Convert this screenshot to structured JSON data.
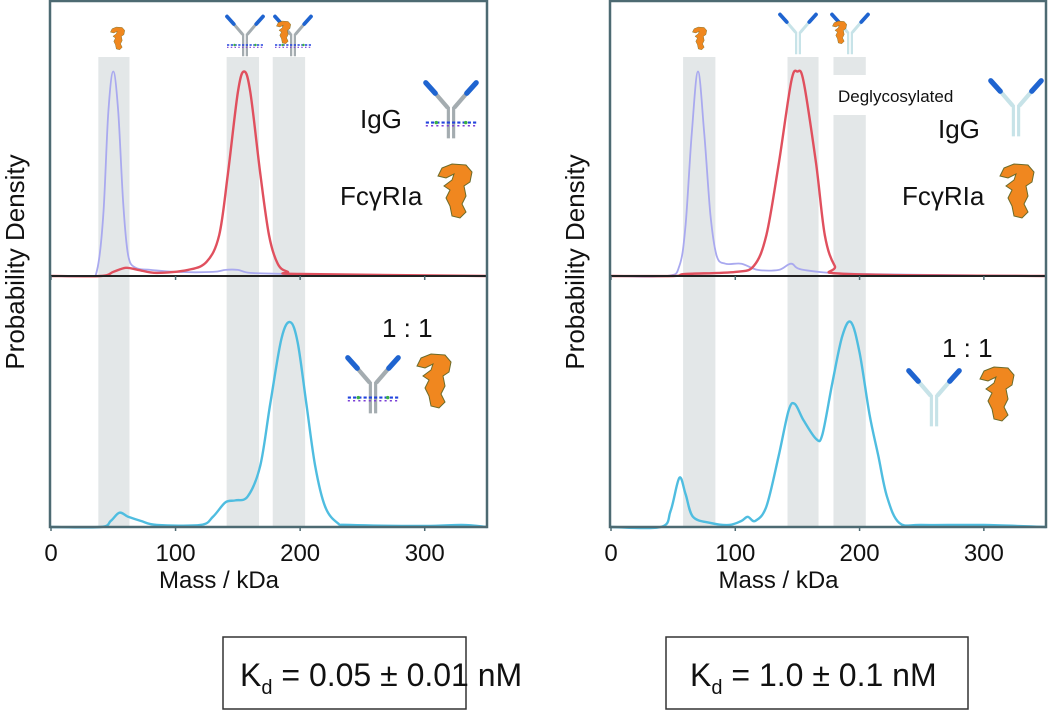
{
  "colors": {
    "frame": "#4d6a72",
    "band": "#e3e7e8",
    "free_receptor_trace": "#a9a9ef",
    "free_igg_trace": "#e0505e",
    "mixture_trace": "#4fbde0",
    "igg_arm_tip": "#1f64d0",
    "igg_body": "#a4acb0",
    "deglyco_igg_body": "#c7e3e8",
    "receptor": "#f0871f"
  },
  "chart_data": [
    {
      "type": "line",
      "panel": "left",
      "xlabel": "Mass / kDa",
      "ylabel": "Probability Density",
      "xlim": [
        0,
        350
      ],
      "xticks": [
        0,
        100,
        200,
        300
      ],
      "grid": false,
      "bands_kDa": [
        [
          38,
          63
        ],
        [
          141,
          167
        ],
        [
          178,
          204
        ]
      ],
      "top": {
        "labels": [
          "IgG",
          "FcγRIa"
        ],
        "ylim": [
          0,
          1.34
        ],
        "series": [
          {
            "color": "#a9a9ef",
            "points": [
              [
                0,
                0
              ],
              [
                30,
                0
              ],
              [
                37,
                0.03
              ],
              [
                42,
                0.3
              ],
              [
                46,
                0.8
              ],
              [
                50,
                1.0
              ],
              [
                54,
                0.8
              ],
              [
                58,
                0.35
              ],
              [
                62,
                0.1
              ],
              [
                68,
                0.04
              ],
              [
                80,
                0.03
              ],
              [
                100,
                0.02
              ],
              [
                130,
                0.02
              ],
              [
                140,
                0.03
              ],
              [
                150,
                0.03
              ],
              [
                160,
                0.015
              ],
              [
                190,
                0.01
              ],
              [
                200,
                0.005
              ],
              [
                350,
                0
              ]
            ]
          },
          {
            "color": "#e0505e",
            "points": [
              [
                0,
                0
              ],
              [
                40,
                0
              ],
              [
                50,
                0.02
              ],
              [
                60,
                0.04
              ],
              [
                70,
                0.03
              ],
              [
                85,
                0.015
              ],
              [
                110,
                0.03
              ],
              [
                125,
                0.07
              ],
              [
                135,
                0.2
              ],
              [
                142,
                0.5
              ],
              [
                150,
                0.9
              ],
              [
                155,
                1.0
              ],
              [
                160,
                0.9
              ],
              [
                168,
                0.5
              ],
              [
                175,
                0.2
              ],
              [
                182,
                0.06
              ],
              [
                190,
                0.02
              ],
              [
                200,
                0.01
              ],
              [
                350,
                0
              ]
            ]
          }
        ]
      },
      "bottom": {
        "labels": [
          "1 : 1"
        ],
        "ylim": [
          0,
          1.22
        ],
        "series": [
          {
            "color": "#4fbde0",
            "points": [
              [
                0,
                0
              ],
              [
                40,
                0
              ],
              [
                48,
                0.03
              ],
              [
                55,
                0.07
              ],
              [
                62,
                0.05
              ],
              [
                72,
                0.03
              ],
              [
                85,
                0.01
              ],
              [
                120,
                0.01
              ],
              [
                130,
                0.05
              ],
              [
                140,
                0.12
              ],
              [
                148,
                0.13
              ],
              [
                158,
                0.15
              ],
              [
                168,
                0.3
              ],
              [
                176,
                0.6
              ],
              [
                185,
                0.92
              ],
              [
                192,
                1.0
              ],
              [
                198,
                0.9
              ],
              [
                205,
                0.6
              ],
              [
                212,
                0.3
              ],
              [
                220,
                0.1
              ],
              [
                230,
                0.02
              ],
              [
                240,
                0.01
              ],
              [
                300,
                0.005
              ],
              [
                330,
                0.01
              ],
              [
                350,
                0
              ]
            ]
          }
        ]
      },
      "kd": {
        "symbol": "K",
        "sub": "d",
        "value": " = 0.05 ± 0.01 nM"
      }
    },
    {
      "type": "line",
      "panel": "right",
      "xlabel": "Mass / kDa",
      "ylabel": "Probability Density",
      "xlim": [
        0,
        350
      ],
      "xticks": [
        0,
        100,
        200,
        300
      ],
      "grid": false,
      "bands_kDa": [
        [
          58,
          84
        ],
        [
          142,
          167
        ],
        [
          179,
          205
        ]
      ],
      "top": {
        "labels": [
          "Deglycosylated",
          "IgG",
          "FcγRIa"
        ],
        "ylim": [
          0,
          1.34
        ],
        "series": [
          {
            "color": "#a9a9ef",
            "points": [
              [
                0,
                0
              ],
              [
                45,
                0
              ],
              [
                55,
                0.05
              ],
              [
                60,
                0.25
              ],
              [
                65,
                0.7
              ],
              [
                70,
                1.0
              ],
              [
                75,
                0.7
              ],
              [
                80,
                0.3
              ],
              [
                85,
                0.1
              ],
              [
                92,
                0.06
              ],
              [
                105,
                0.06
              ],
              [
                118,
                0.03
              ],
              [
                135,
                0.03
              ],
              [
                145,
                0.06
              ],
              [
                155,
                0.03
              ],
              [
                200,
                0.01
              ],
              [
                350,
                0
              ]
            ]
          },
          {
            "color": "#e0505e",
            "points": [
              [
                0,
                0
              ],
              [
                50,
                0
              ],
              [
                60,
                0.01
              ],
              [
                100,
                0.02
              ],
              [
                115,
                0.05
              ],
              [
                125,
                0.2
              ],
              [
                135,
                0.55
              ],
              [
                145,
                0.95
              ],
              [
                150,
                1.0
              ],
              [
                155,
                0.95
              ],
              [
                165,
                0.55
              ],
              [
                172,
                0.2
              ],
              [
                180,
                0.05
              ],
              [
                190,
                0.01
              ],
              [
                350,
                0
              ]
            ]
          }
        ]
      },
      "bottom": {
        "labels": [
          "1 : 1"
        ],
        "ylim": [
          0,
          1.22
        ],
        "series": [
          {
            "color": "#4fbde0",
            "points": [
              [
                0,
                0
              ],
              [
                40,
                0
              ],
              [
                48,
                0.08
              ],
              [
                55,
                0.24
              ],
              [
                60,
                0.16
              ],
              [
                66,
                0.05
              ],
              [
                80,
                0.02
              ],
              [
                95,
                0.01
              ],
              [
                105,
                0.03
              ],
              [
                110,
                0.05
              ],
              [
                116,
                0.03
              ],
              [
                125,
                0.1
              ],
              [
                135,
                0.35
              ],
              [
                143,
                0.57
              ],
              [
                148,
                0.6
              ],
              [
                155,
                0.52
              ],
              [
                165,
                0.43
              ],
              [
                170,
                0.45
              ],
              [
                178,
                0.7
              ],
              [
                186,
                0.93
              ],
              [
                193,
                1.0
              ],
              [
                200,
                0.85
              ],
              [
                208,
                0.55
              ],
              [
                215,
                0.35
              ],
              [
                222,
                0.15
              ],
              [
                232,
                0.02
              ],
              [
                250,
                0.01
              ],
              [
                300,
                0.01
              ],
              [
                350,
                0
              ]
            ]
          }
        ]
      },
      "kd": {
        "symbol": "K",
        "sub": "d",
        "value": " = 1.0 ± 0.1 nM"
      }
    }
  ]
}
